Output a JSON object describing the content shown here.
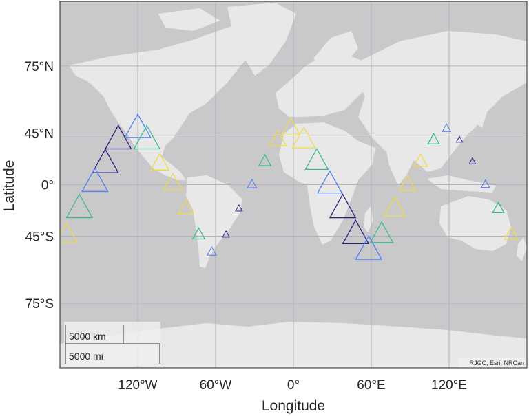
{
  "map": {
    "type": "scatter-geo",
    "basemap_attribution": "RJGC, Esri, NRCan",
    "xlabel": "Longitude",
    "ylabel": "Latitude",
    "lon_range": [
      -180,
      180
    ],
    "lat_range": [
      -85,
      85
    ],
    "lat_ticks": [
      {
        "lat": 75,
        "label": "75°N"
      },
      {
        "lat": 45,
        "label": "45°N"
      },
      {
        "lat": 0,
        "label": "0°"
      },
      {
        "lat": -45,
        "label": "45°S"
      },
      {
        "lat": -75,
        "label": "75°S"
      }
    ],
    "lon_ticks": [
      {
        "lon": -120,
        "label": "120°W"
      },
      {
        "lon": -60,
        "label": "60°W"
      },
      {
        "lon": 0,
        "label": "0°"
      },
      {
        "lon": 60,
        "label": "60°E"
      },
      {
        "lon": 120,
        "label": "120°E"
      }
    ],
    "grid": true,
    "scalebar": {
      "km_label": "5000 km",
      "mi_label": "5000 mi"
    },
    "colors": {
      "ocean": "#c9c9cc",
      "land": "#e8e8e8",
      "grid": "#b4b4b8",
      "dark_purple": "#2d1a7f",
      "blue": "#4f7cf0",
      "green": "#3dbb8c",
      "yellow": "#f0d94a"
    },
    "markers": [
      {
        "lon": -120,
        "lat": 48,
        "size": 3,
        "color": "blue"
      },
      {
        "lon": -135,
        "lat": 40,
        "size": 3,
        "color": "dark_purple"
      },
      {
        "lon": -113,
        "lat": 40,
        "size": 3,
        "color": "green"
      },
      {
        "lon": -145,
        "lat": 20,
        "size": 3,
        "color": "dark_purple"
      },
      {
        "lon": -103,
        "lat": 20,
        "size": 2,
        "color": "yellow"
      },
      {
        "lon": -153,
        "lat": 2,
        "size": 3,
        "color": "blue"
      },
      {
        "lon": -93,
        "lat": 1,
        "size": 2,
        "color": "yellow"
      },
      {
        "lon": -165,
        "lat": -23,
        "size": 3,
        "color": "green"
      },
      {
        "lon": -83,
        "lat": -23,
        "size": 1.6,
        "color": "yellow"
      },
      {
        "lon": -175,
        "lat": -44,
        "size": 2.4,
        "color": "yellow"
      },
      {
        "lon": -73,
        "lat": -44,
        "size": 1.2,
        "color": "green"
      },
      {
        "lon": -63,
        "lat": -55,
        "size": 0.8,
        "color": "blue"
      },
      {
        "lon": -52,
        "lat": -44,
        "size": 0.5,
        "color": "dark_purple"
      },
      {
        "lon": -42,
        "lat": -23,
        "size": 0.5,
        "color": "dark_purple"
      },
      {
        "lon": -32,
        "lat": 0,
        "size": 0.8,
        "color": "blue"
      },
      {
        "lon": -22,
        "lat": 22,
        "size": 1.2,
        "color": "green"
      },
      {
        "lon": -12,
        "lat": 40,
        "size": 1.8,
        "color": "yellow"
      },
      {
        "lon": -2,
        "lat": 48,
        "size": 2,
        "color": "yellow"
      },
      {
        "lon": 8,
        "lat": 40,
        "size": 2.6,
        "color": "yellow"
      },
      {
        "lon": 18,
        "lat": 22,
        "size": 2.6,
        "color": "green"
      },
      {
        "lon": 28,
        "lat": 0,
        "size": 2.8,
        "color": "blue"
      },
      {
        "lon": 38,
        "lat": -23,
        "size": 3,
        "color": "dark_purple"
      },
      {
        "lon": 48,
        "lat": -44,
        "size": 3,
        "color": "dark_purple"
      },
      {
        "lon": 58,
        "lat": -54,
        "size": 3,
        "color": "blue"
      },
      {
        "lon": 68,
        "lat": -44,
        "size": 2.6,
        "color": "green"
      },
      {
        "lon": 78,
        "lat": -23,
        "size": 2.4,
        "color": "yellow"
      },
      {
        "lon": 88,
        "lat": 0,
        "size": 1.8,
        "color": "yellow"
      },
      {
        "lon": 98,
        "lat": 22,
        "size": 1.4,
        "color": "yellow"
      },
      {
        "lon": 108,
        "lat": 40,
        "size": 1.1,
        "color": "green"
      },
      {
        "lon": 118,
        "lat": 48,
        "size": 0.7,
        "color": "blue"
      },
      {
        "lon": 128,
        "lat": 40,
        "size": 0.45,
        "color": "dark_purple"
      },
      {
        "lon": 138,
        "lat": 22,
        "size": 0.45,
        "color": "dark_purple"
      },
      {
        "lon": 148,
        "lat": 0,
        "size": 0.7,
        "color": "blue"
      },
      {
        "lon": 158,
        "lat": -23,
        "size": 1.1,
        "color": "green"
      },
      {
        "lon": 168,
        "lat": -44,
        "size": 1.4,
        "color": "yellow"
      }
    ]
  }
}
